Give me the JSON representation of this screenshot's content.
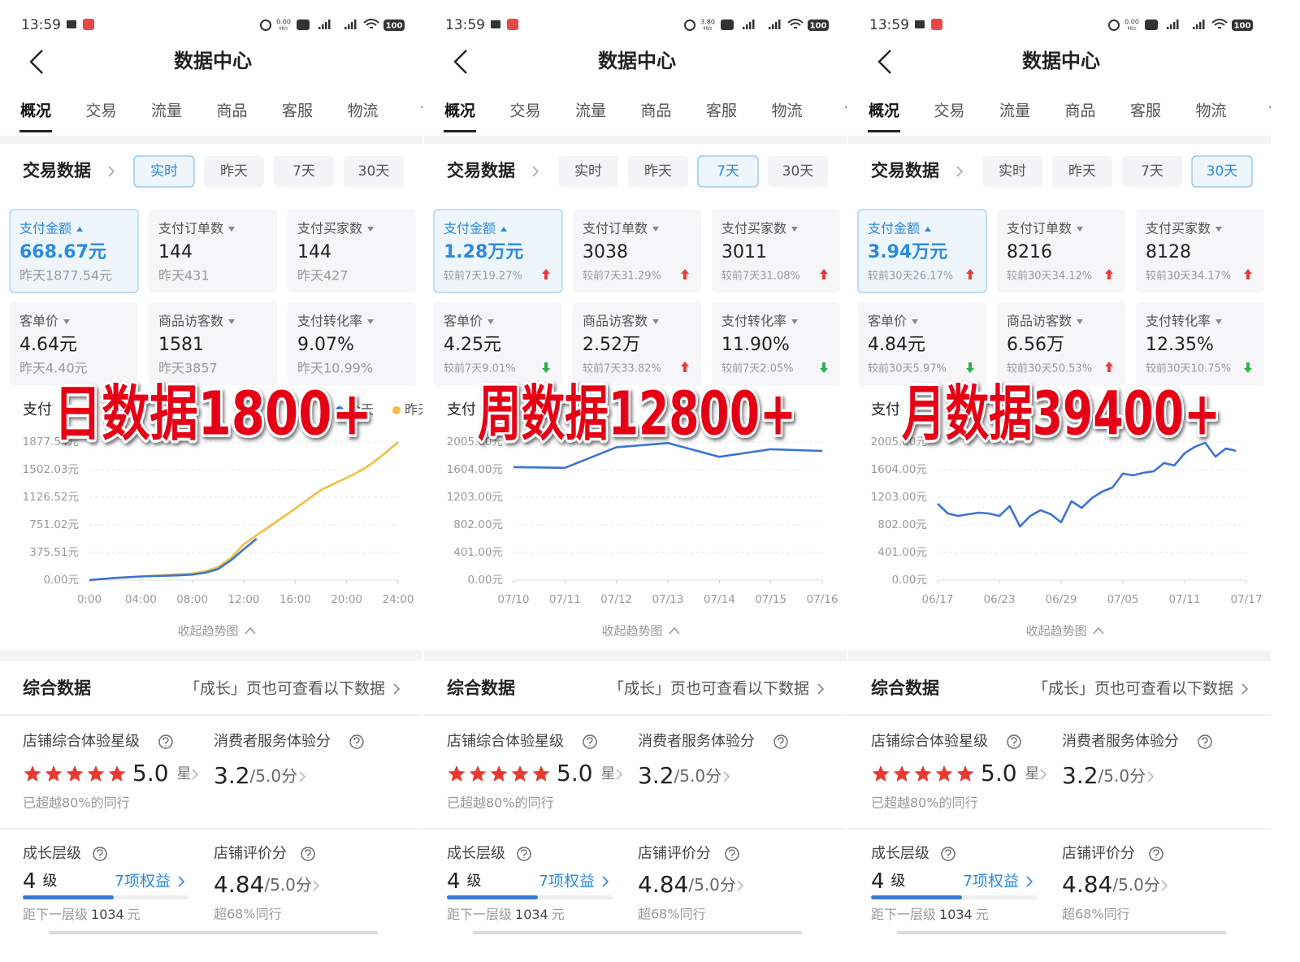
{
  "panels": [
    {
      "status": {
        "time": "13:59",
        "speed": "0.00",
        "speed_unit": "KB/s",
        "battery": "100"
      },
      "header": {
        "title": "数据中心"
      },
      "tabs": [
        "概况",
        "交易",
        "流量",
        "商品",
        "客服",
        "物流",
        "售"
      ],
      "active_tab": 0,
      "trade": {
        "title": "交易数据",
        "ranges": [
          "实时",
          "昨天",
          "7天",
          "30天"
        ],
        "active": 0,
        "selected": 0,
        "metrics": [
          {
            "label": "支付金额",
            "value": "668.67元",
            "compare": "昨天1877.54元"
          },
          {
            "label": "支付订单数",
            "value": "144",
            "compare": "昨天431"
          },
          {
            "label": "支付买家数",
            "value": "144",
            "compare": "昨天427"
          },
          {
            "label": "客单价",
            "value": "4.64元",
            "compare": "昨天4.40元"
          },
          {
            "label": "商品访客数",
            "value": "1581",
            "compare": "昨天3857"
          },
          {
            "label": "支付转化率",
            "value": "9.07%",
            "compare": "昨天10.99%"
          }
        ]
      },
      "chart": {
        "type": "line",
        "title": "支付",
        "categories": [
          "0:00",
          null,
          null,
          null,
          "04:00",
          null,
          null,
          null,
          "08:00",
          null,
          null,
          null,
          "12:00",
          null,
          null,
          null,
          "16:00",
          null,
          null,
          null,
          "20:00",
          null,
          null,
          null,
          "24:00"
        ],
        "series": [
          {
            "name": "今天",
            "color": "#3b74d6",
            "values": [
              0,
              15,
              30,
              40,
              50,
              55,
              60,
              65,
              75,
              100,
              150,
              270,
              420,
              563,
              null,
              null,
              null,
              null,
              null,
              null,
              null,
              null,
              null,
              null,
              null
            ]
          },
          {
            "name": "昨天",
            "color": "#f2bf3f",
            "values": [
              0,
              15,
              30,
              40,
              50,
              60,
              70,
              80,
              90,
              120,
              177,
              300,
              486,
              610,
              729,
              850,
              972,
              1100,
              1225,
              1310,
              1390,
              1480,
              1590,
              1730,
              1877.54
            ]
          }
        ],
        "ylim": [
          0,
          1877.54
        ],
        "yticks": [
          {
            "value": 0,
            "label": "0.00元"
          },
          {
            "value": 375.51,
            "label": "375.51元"
          },
          {
            "value": 751.02,
            "label": "751.02元"
          },
          {
            "value": 1126.52,
            "label": "1126.52元"
          },
          {
            "value": 1502.03,
            "label": "1502.03元"
          },
          {
            "value": 1877.54,
            "label": "1877.54元"
          }
        ],
        "grid": true
      },
      "collapse": "收起趋势图",
      "overlay": "日数据1800+",
      "summary": {
        "title": "综合数据",
        "link": "「成长」页也可查看以下数据",
        "star": {
          "title": "店铺综合体验星级",
          "score": "5.0",
          "unit": "星",
          "note": "已超越80%的同行"
        },
        "service": {
          "title": "消费者服务体验分",
          "score": "3.2",
          "max": "/5.0分"
        },
        "growth": {
          "title": "成长层级",
          "level": "4",
          "unit": "级",
          "benefit": "7项权益",
          "next_prefix": "距下一层级",
          "next_amount": "1034",
          "next_unit": "元"
        },
        "review": {
          "title": "店铺评价分",
          "score": "4.84",
          "max": "/5.0分",
          "note": "超68%同行"
        }
      }
    },
    {
      "status": {
        "time": "13:59",
        "speed": "3.80",
        "speed_unit": "KB/s",
        "battery": "100"
      },
      "header": {
        "title": "数据中心"
      },
      "tabs": [
        "概况",
        "交易",
        "流量",
        "商品",
        "客服",
        "物流",
        "售"
      ],
      "active_tab": 0,
      "trade": {
        "title": "交易数据",
        "ranges": [
          "实时",
          "昨天",
          "7天",
          "30天"
        ],
        "active": 2,
        "selected": 0,
        "metrics": [
          {
            "label": "支付金额",
            "value": "1.28万元",
            "compare": "较前7天19.27%",
            "trend": "up"
          },
          {
            "label": "支付订单数",
            "value": "3038",
            "compare": "较前7天31.29%",
            "trend": "up"
          },
          {
            "label": "支付买家数",
            "value": "3011",
            "compare": "较前7天31.08%",
            "trend": "up"
          },
          {
            "label": "客单价",
            "value": "4.25元",
            "compare": "较前7天9.01%",
            "trend": "down"
          },
          {
            "label": "商品访客数",
            "value": "2.52万",
            "compare": "较前7天33.82%",
            "trend": "up"
          },
          {
            "label": "支付转化率",
            "value": "11.90%",
            "compare": "较前7天2.05%",
            "trend": "down"
          }
        ]
      },
      "chart": {
        "type": "line",
        "title": "支付",
        "categories": [
          "07/10",
          "07/11",
          "07/12",
          "07/13",
          "07/14",
          "07/15",
          "07/16"
        ],
        "series": [
          {
            "color": "#3b74d6",
            "values": [
              1640,
              1630,
              1930,
              1990,
              1790,
              1900,
              1875
            ]
          }
        ],
        "ylim": [
          0,
          2005
        ],
        "yticks": [
          {
            "value": 0,
            "label": "0.00元"
          },
          {
            "value": 401,
            "label": "401.00元"
          },
          {
            "value": 802,
            "label": "802.00元"
          },
          {
            "value": 1203,
            "label": "1203.00元"
          },
          {
            "value": 1604,
            "label": "1604.00元"
          },
          {
            "value": 2005,
            "label": "2005.00元"
          }
        ],
        "grid": true
      },
      "collapse": "收起趋势图",
      "overlay": "周数据12800+",
      "summary": {
        "title": "综合数据",
        "link": "「成长」页也可查看以下数据",
        "star": {
          "title": "店铺综合体验星级",
          "score": "5.0",
          "unit": "星",
          "note": "已超越80%的同行"
        },
        "service": {
          "title": "消费者服务体验分",
          "score": "3.2",
          "max": "/5.0分"
        },
        "growth": {
          "title": "成长层级",
          "level": "4",
          "unit": "级",
          "benefit": "7项权益",
          "next_prefix": "距下一层级",
          "next_amount": "1034",
          "next_unit": "元"
        },
        "review": {
          "title": "店铺评价分",
          "score": "4.84",
          "max": "/5.0分",
          "note": "超68%同行"
        }
      }
    },
    {
      "status": {
        "time": "13:59",
        "speed": "0.00",
        "speed_unit": "KB/s",
        "battery": "100"
      },
      "header": {
        "title": "数据中心"
      },
      "tabs": [
        "概况",
        "交易",
        "流量",
        "商品",
        "客服",
        "物流",
        "售"
      ],
      "active_tab": 0,
      "trade": {
        "title": "交易数据",
        "ranges": [
          "实时",
          "昨天",
          "7天",
          "30天"
        ],
        "active": 3,
        "selected": 0,
        "metrics": [
          {
            "label": "支付金额",
            "value": "3.94万元",
            "compare": "较前30天26.17%",
            "trend": "up"
          },
          {
            "label": "支付订单数",
            "value": "8216",
            "compare": "较前30天34.12%",
            "trend": "up"
          },
          {
            "label": "支付买家数",
            "value": "8128",
            "compare": "较前30天34.17%",
            "trend": "up"
          },
          {
            "label": "客单价",
            "value": "4.84元",
            "compare": "较前30天5.97%",
            "trend": "down"
          },
          {
            "label": "商品访客数",
            "value": "6.56万",
            "compare": "较前30天50.53%",
            "trend": "up"
          },
          {
            "label": "支付转化率",
            "value": "12.35%",
            "compare": "较前30天10.75%",
            "trend": "down"
          }
        ]
      },
      "chart": {
        "type": "line",
        "title": "支付",
        "categories": [
          "06/17",
          null,
          null,
          null,
          null,
          null,
          "06/23",
          null,
          null,
          null,
          null,
          null,
          "06/29",
          null,
          null,
          null,
          null,
          null,
          "07/05",
          null,
          null,
          null,
          null,
          null,
          "07/11",
          null,
          null,
          null,
          null,
          null,
          "07/17"
        ],
        "series": [
          {
            "color": "#3b74d6",
            "values": [
              1109,
              967,
              932,
              956,
              979,
              967,
              932,
              1074,
              779,
              932,
              1015,
              956,
              838,
              1145,
              1050,
              1192,
              1286,
              1345,
              1546,
              1522,
              1558,
              1581,
              1699,
              1664,
              1841,
              1935,
              1994,
              1793,
              1911,
              1876,
              null
            ]
          }
        ],
        "ylim": [
          0,
          2005
        ],
        "yticks": [
          {
            "value": 0,
            "label": "0.00元"
          },
          {
            "value": 401,
            "label": "401.00元"
          },
          {
            "value": 802,
            "label": "802.00元"
          },
          {
            "value": 1203,
            "label": "1203.00元"
          },
          {
            "value": 1604,
            "label": "1604.00元"
          },
          {
            "value": 2005,
            "label": "2005.00元"
          }
        ],
        "grid": true
      },
      "collapse": "收起趋势图",
      "overlay": "月数据39400+",
      "summary": {
        "title": "综合数据",
        "link": "「成长」页也可查看以下数据",
        "star": {
          "title": "店铺综合体验星级",
          "score": "5.0",
          "unit": "星",
          "note": "已超越80%的同行"
        },
        "service": {
          "title": "消费者服务体验分",
          "score": "3.2",
          "max": "/5.0分"
        },
        "growth": {
          "title": "成长层级",
          "level": "4",
          "unit": "级",
          "benefit": "7项权益",
          "next_prefix": "距下一层级",
          "next_amount": "1034",
          "next_unit": "元"
        },
        "review": {
          "title": "店铺评价分",
          "score": "4.84",
          "max": "/5.0分",
          "note": "超68%同行"
        }
      }
    }
  ]
}
